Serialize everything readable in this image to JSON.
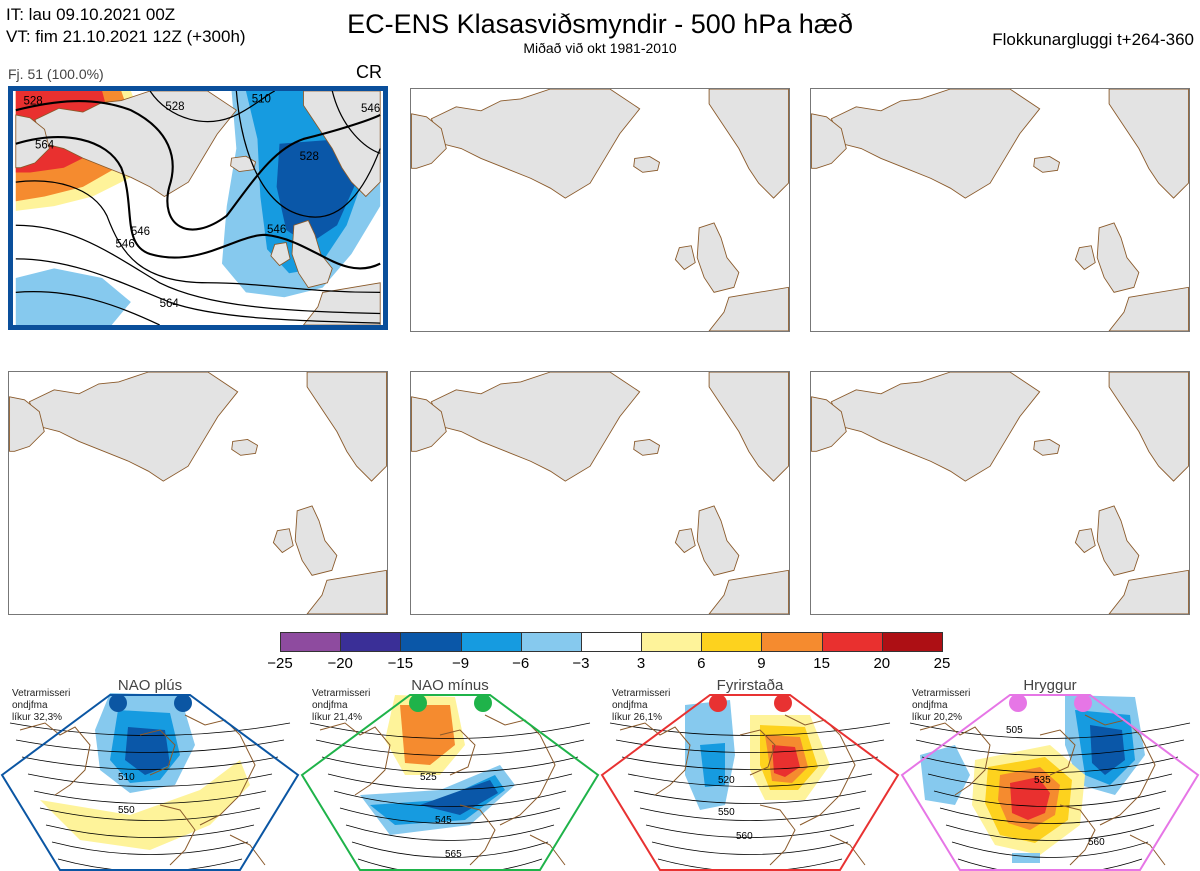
{
  "header": {
    "it_line": "IT: lau 09.10.2021 00Z",
    "vt_line": "VT: fim 21.10.2021 12Z  (+300h)",
    "title": "EC-ENS Klasasviðsmyndir - 500 hPa hæð",
    "subtitle": "Miðað við okt 1981-2010",
    "window": "Flokkunargluggi t+264-360"
  },
  "cluster": {
    "label": "Fj. 51 (100.0%)",
    "regime_code": "CR",
    "contour_labels": [
      "528",
      "546",
      "564",
      "510",
      "528",
      "546",
      "546",
      "564",
      "546",
      "528"
    ]
  },
  "colors": {
    "highlight_border": "#0a4f9b",
    "land": "#e3e3e3",
    "coast": "#8a5a2b",
    "nao_plus": "#0b56a3",
    "nao_minus": "#1fb34a",
    "blocking": "#e83232",
    "ridge": "#e676e6"
  },
  "chart_data": {
    "type": "heatmap",
    "title": "EC-ENS Klasasviðsmyndir - 500 hPa hæð",
    "colorbar": {
      "ticks": [
        "−25",
        "−20",
        "−15",
        "−9",
        "−6",
        "−3",
        "3",
        "6",
        "9",
        "15",
        "20",
        "25"
      ],
      "bins": [
        {
          "from": -25,
          "to": -20,
          "color": "#8e4b9f"
        },
        {
          "from": -20,
          "to": -15,
          "color": "#3a2f97"
        },
        {
          "from": -15,
          "to": -9,
          "color": "#0a57a8"
        },
        {
          "from": -9,
          "to": -6,
          "color": "#169be0"
        },
        {
          "from": -6,
          "to": -3,
          "color": "#86c9ee"
        },
        {
          "from": -3,
          "to": 3,
          "color": "#ffffff"
        },
        {
          "from": 3,
          "to": 6,
          "color": "#fef39a"
        },
        {
          "from": 6,
          "to": 9,
          "color": "#fdd21e"
        },
        {
          "from": 9,
          "to": 15,
          "color": "#f58b2f"
        },
        {
          "from": 15,
          "to": 20,
          "color": "#e9302f"
        },
        {
          "from": 20,
          "to": 25,
          "color": "#ad0f14"
        }
      ]
    },
    "regimes": [
      {
        "name": "NAO plús",
        "season": "Vetrarmisseri",
        "type_line": "ondjfma",
        "probability": "líkur 32,3%",
        "color": "#0b56a3",
        "labels": [
          "510",
          "550"
        ]
      },
      {
        "name": "NAO mínus",
        "season": "Vetrarmisseri",
        "type_line": "ondjfma",
        "probability": "líkur 21,4%",
        "color": "#1fb34a",
        "labels": [
          "525",
          "545",
          "565"
        ]
      },
      {
        "name": "Fyrirstaða",
        "season": "Vetrarmisseri",
        "type_line": "ondjfma",
        "probability": "líkur 26,1%",
        "color": "#e83232",
        "labels": [
          "520",
          "550",
          "560"
        ]
      },
      {
        "name": "Hryggur",
        "season": "Vetrarmisseri",
        "type_line": "ondjfma",
        "probability": "líkur 20,2%",
        "color": "#e676e6",
        "labels": [
          "505",
          "535",
          "560"
        ]
      }
    ]
  }
}
